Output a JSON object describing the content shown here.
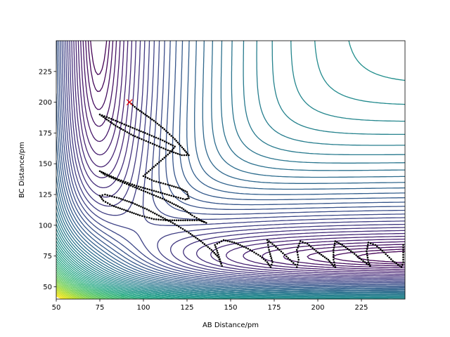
{
  "chart_data": {
    "type": "contour",
    "title": "",
    "xlabel": "AB Distance/pm",
    "ylabel": "BC Distance/pm",
    "xlim": [
      50,
      250
    ],
    "ylim": [
      40,
      250
    ],
    "xticks": [
      50,
      75,
      100,
      125,
      150,
      175,
      200,
      225
    ],
    "yticks": [
      50,
      75,
      100,
      125,
      150,
      175,
      200,
      225
    ],
    "colormap": "viridis",
    "contour_levels": 60,
    "potential_model": {
      "form": "LEPS",
      "r0_pm": 74,
      "alpha_per_pm": 0.0193,
      "sato": 0.05
    },
    "start_marker": {
      "x": 92,
      "y": 200,
      "symbol": "x",
      "color": "#ff0000"
    },
    "trajectory": {
      "color": "#000000",
      "points": [
        [
          92,
          200
        ],
        [
          96,
          195
        ],
        [
          100,
          191
        ],
        [
          106,
          185
        ],
        [
          112,
          178
        ],
        [
          118,
          170
        ],
        [
          123,
          162
        ],
        [
          126,
          157
        ],
        [
          122,
          157
        ],
        [
          114,
          161
        ],
        [
          104,
          167
        ],
        [
          94,
          173
        ],
        [
          84,
          181
        ],
        [
          77,
          188
        ],
        [
          75,
          190
        ],
        [
          79,
          188
        ],
        [
          89,
          182
        ],
        [
          101,
          175
        ],
        [
          111,
          169
        ],
        [
          118,
          164
        ],
        [
          116,
          160
        ],
        [
          112,
          155
        ],
        [
          108,
          150
        ],
        [
          104,
          145
        ],
        [
          100,
          140
        ],
        [
          106,
          136
        ],
        [
          114,
          133
        ],
        [
          121,
          130
        ],
        [
          125,
          127
        ],
        [
          126,
          122
        ],
        [
          124,
          121
        ],
        [
          116,
          124
        ],
        [
          106,
          128
        ],
        [
          96,
          132
        ],
        [
          86,
          137
        ],
        [
          78,
          142
        ],
        [
          75,
          144
        ],
        [
          78,
          141
        ],
        [
          88,
          135
        ],
        [
          100,
          128
        ],
        [
          112,
          121
        ],
        [
          122,
          114
        ],
        [
          128,
          108
        ],
        [
          133,
          104
        ],
        [
          136,
          102
        ],
        [
          132,
          104
        ],
        [
          124,
          104
        ],
        [
          114,
          104
        ],
        [
          106,
          105
        ],
        [
          98,
          108
        ],
        [
          90,
          112
        ],
        [
          82,
          116
        ],
        [
          77,
          120
        ],
        [
          75,
          124
        ],
        [
          78,
          125
        ],
        [
          86,
          122
        ],
        [
          94,
          118
        ],
        [
          102,
          113
        ],
        [
          110,
          107
        ],
        [
          118,
          101
        ],
        [
          126,
          94
        ],
        [
          133,
          87
        ],
        [
          139,
          80
        ],
        [
          143,
          74
        ],
        [
          145,
          67
        ],
        [
          143,
          76
        ],
        [
          141,
          84
        ],
        [
          146,
          88
        ],
        [
          152,
          86
        ],
        [
          160,
          81
        ],
        [
          167,
          75
        ],
        [
          171,
          70
        ],
        [
          173,
          66
        ],
        [
          174,
          70
        ],
        [
          172,
          80
        ],
        [
          171,
          88
        ],
        [
          173,
          86
        ],
        [
          178,
          80
        ],
        [
          184,
          72
        ],
        [
          187,
          68
        ],
        [
          188,
          66
        ],
        [
          189,
          72
        ],
        [
          188,
          80
        ],
        [
          190,
          87
        ],
        [
          194,
          85
        ],
        [
          200,
          78
        ],
        [
          206,
          72
        ],
        [
          209,
          67
        ],
        [
          210,
          66
        ],
        [
          209,
          72
        ],
        [
          209,
          80
        ],
        [
          210,
          87
        ],
        [
          214,
          84
        ],
        [
          220,
          78
        ],
        [
          226,
          71
        ],
        [
          230,
          67
        ],
        [
          229,
          70
        ],
        [
          228,
          79
        ],
        [
          229,
          86
        ],
        [
          233,
          84
        ],
        [
          238,
          78
        ],
        [
          243,
          71
        ],
        [
          246,
          68
        ],
        [
          248,
          66
        ],
        [
          249,
          70
        ],
        [
          249,
          78
        ],
        [
          249,
          86
        ]
      ]
    }
  }
}
